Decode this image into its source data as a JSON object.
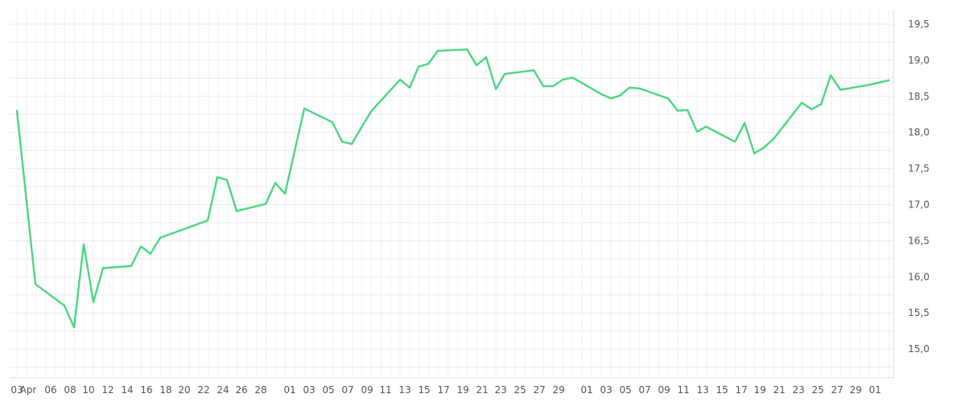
{
  "chart_data": {
    "type": "line",
    "title": "",
    "xlabel": "",
    "ylabel": "",
    "ylim": [
      14.6,
      19.7
    ],
    "y_ticks": [
      "15,0",
      "15,5",
      "16,0",
      "16,5",
      "17,0",
      "17,5",
      "18,0",
      "18,5",
      "19,0",
      "19,5"
    ],
    "y_tick_values": [
      15.0,
      15.5,
      16.0,
      16.5,
      17.0,
      17.5,
      18.0,
      18.5,
      19.0,
      19.5
    ],
    "x_ticks": [
      "03",
      "Apr",
      "06",
      "08",
      "10",
      "12",
      "14",
      "16",
      "18",
      "20",
      "22",
      "24",
      "26",
      "28",
      "01",
      "03",
      "05",
      "07",
      "09",
      "11",
      "13",
      "15",
      "17",
      "19",
      "21",
      "23",
      "25",
      "27",
      "29",
      "01",
      "03",
      "05",
      "07",
      "09",
      "11",
      "13",
      "15",
      "17",
      "19",
      "21",
      "23",
      "25",
      "27",
      "29",
      "01"
    ],
    "grid": true,
    "series_color": "#4cd67f",
    "series": [
      {
        "values": [
          18.3,
          15.9,
          15.6,
          15.3,
          16.45,
          15.65,
          16.12,
          16.15,
          16.42,
          16.32,
          16.54,
          16.78,
          17.38,
          17.34,
          16.91,
          17.01,
          17.3,
          17.15,
          18.33,
          18.14,
          17.87,
          17.84,
          18.07,
          18.29,
          18.73,
          18.62,
          18.91,
          18.95,
          19.13,
          19.15,
          18.93,
          19.04,
          18.6,
          18.81,
          18.86,
          18.64,
          18.64,
          18.73,
          18.76,
          18.53,
          18.47,
          18.51,
          18.62,
          18.61,
          18.47,
          18.3,
          18.31,
          18.01,
          18.08,
          17.87,
          18.13,
          17.71,
          17.79,
          17.91,
          18.41,
          18.32,
          18.39,
          18.79,
          18.59,
          18.66,
          18.72
        ]
      }
    ]
  }
}
